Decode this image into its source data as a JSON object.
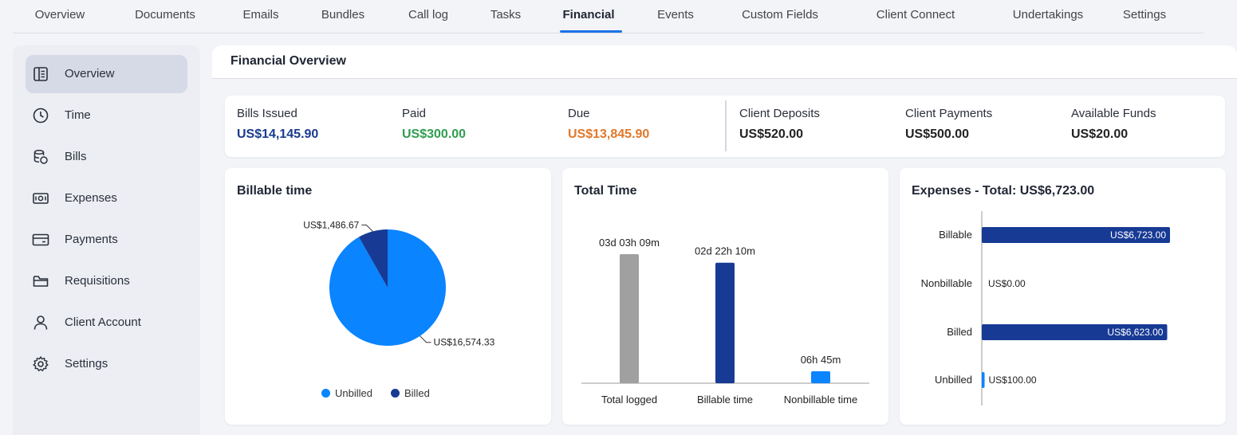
{
  "tabs": [
    {
      "label": "Overview",
      "active": false
    },
    {
      "label": "Documents",
      "active": false
    },
    {
      "label": "Emails",
      "active": false
    },
    {
      "label": "Bundles",
      "active": false
    },
    {
      "label": "Call log",
      "active": false
    },
    {
      "label": "Tasks",
      "active": false
    },
    {
      "label": "Financial",
      "active": true
    },
    {
      "label": "Events",
      "active": false
    },
    {
      "label": "Custom Fields",
      "active": false
    },
    {
      "label": "Client Connect",
      "active": false
    },
    {
      "label": "Undertakings",
      "active": false
    },
    {
      "label": "Settings",
      "active": false
    }
  ],
  "sidebar": {
    "items": [
      {
        "label": "Overview",
        "icon": "book-icon",
        "active": true
      },
      {
        "label": "Time",
        "icon": "clock-icon",
        "active": false
      },
      {
        "label": "Bills",
        "icon": "coins-icon",
        "active": false
      },
      {
        "label": "Expenses",
        "icon": "banknote-icon",
        "active": false
      },
      {
        "label": "Payments",
        "icon": "card-icon",
        "active": false
      },
      {
        "label": "Requisitions",
        "icon": "folder-icon",
        "active": false
      },
      {
        "label": "Client Account",
        "icon": "user-icon",
        "active": false
      },
      {
        "label": "Settings",
        "icon": "gear-icon",
        "active": false
      }
    ]
  },
  "main": {
    "title": "Financial Overview",
    "stats": [
      {
        "label": "Bills Issued",
        "value": "US$14,145.90",
        "color": "#1a3a8f"
      },
      {
        "label": "Paid",
        "value": "US$300.00",
        "color": "#2e9e4f"
      },
      {
        "label": "Due",
        "value": "US$13,845.90",
        "color": "#e0782a"
      },
      {
        "label": "Client Deposits",
        "value": "US$520.00",
        "color": "#222222"
      },
      {
        "label": "Client Payments",
        "value": "US$500.00",
        "color": "#222222"
      },
      {
        "label": "Available Funds",
        "value": "US$20.00",
        "color": "#222222"
      }
    ]
  },
  "colors": {
    "accent": "#1a73e8",
    "bright_blue": "#0a84ff",
    "navy": "#173a94",
    "gray_bar": "#a0a0a0"
  },
  "chart_data": [
    {
      "type": "pie",
      "title": "Billable time",
      "slices": [
        {
          "name": "Unbilled",
          "value": 16574.33,
          "label": "US$16,574.33",
          "color": "#0a84ff"
        },
        {
          "name": "Billed",
          "value": 1486.67,
          "label": "US$1,486.67",
          "color": "#173a94"
        }
      ],
      "legend": [
        "Unbilled",
        "Billed"
      ],
      "legend_position": "bottom"
    },
    {
      "type": "bar",
      "title": "Total Time",
      "categories": [
        "Total logged",
        "Billable time",
        "Nonbillable time"
      ],
      "values_minutes": [
        4509,
        4210,
        405
      ],
      "labels": [
        "03d 03h 09m",
        "02d 22h 10m",
        "06h 45m"
      ],
      "colors": [
        "#a0a0a0",
        "#173a94",
        "#0a84ff"
      ]
    },
    {
      "type": "bar",
      "orientation": "horizontal",
      "title": "Expenses - Total: US$6,723.00",
      "categories": [
        "Billable",
        "Nonbillable",
        "Billed",
        "Unbilled"
      ],
      "values": [
        6723,
        0,
        6623,
        100
      ],
      "labels": [
        "US$6,723.00",
        "US$0.00",
        "US$6,623.00",
        "US$100.00"
      ],
      "colors": [
        "#173a94",
        "#173a94",
        "#173a94",
        "#0a84ff"
      ]
    }
  ]
}
